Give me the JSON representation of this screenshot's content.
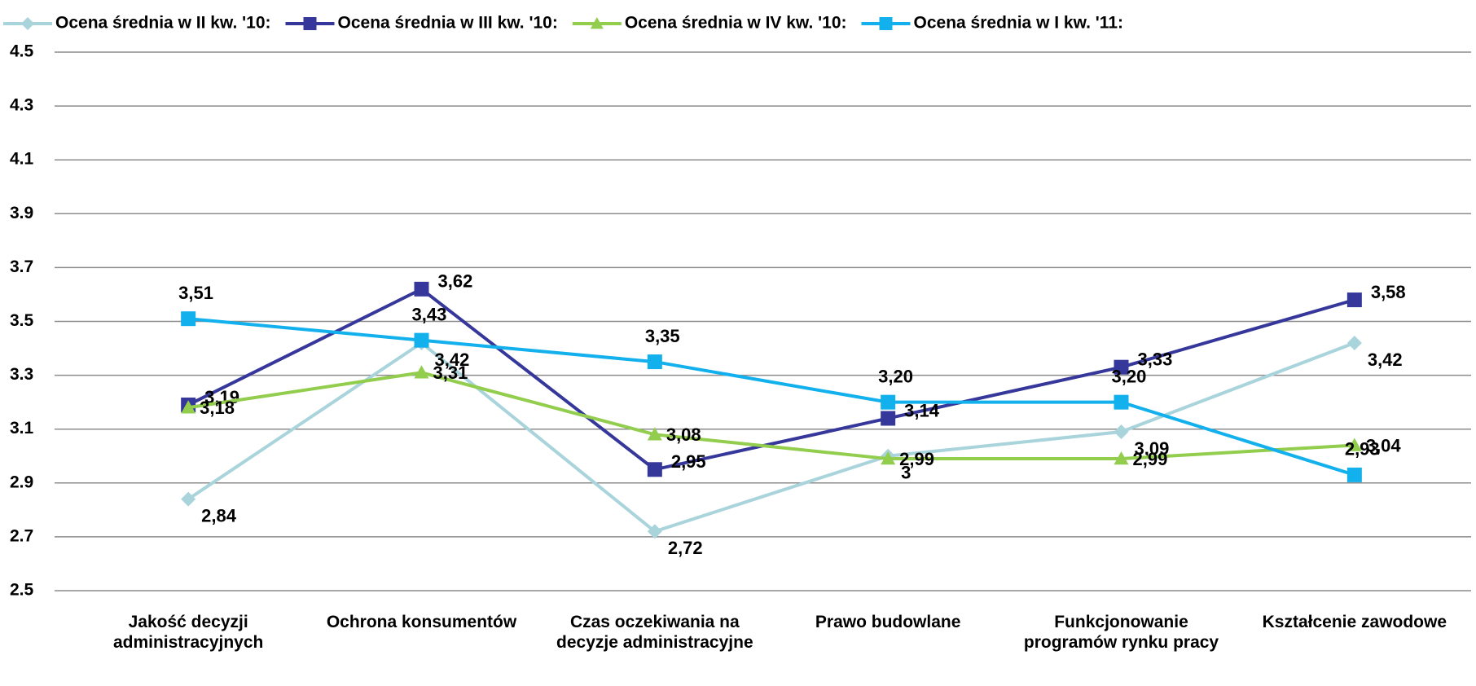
{
  "chart_data": {
    "type": "line",
    "categories": [
      "Jakość decyzji administracyjnych",
      "Ochrona konsumentów",
      "Czas oczekiwania na decyzje administracyjne",
      "Prawo budowlane",
      "Funkcjonowanie programów rynku pracy",
      "Kształcenie zawodowe"
    ],
    "series": [
      {
        "name": "Ocena średnia w II kw. '10:",
        "color": "#a9d4dc",
        "marker": "diamond",
        "values": [
          2.84,
          3.42,
          2.72,
          3,
          3.09,
          3.42
        ],
        "value_labels": [
          "2,84",
          "3,42",
          "2,72",
          "3",
          "3,09",
          "3,42"
        ]
      },
      {
        "name": "Ocena średnia w III kw. '10:",
        "color": "#36379a",
        "marker": "square",
        "values": [
          3.19,
          3.62,
          2.95,
          3.14,
          3.33,
          3.58
        ],
        "value_labels": [
          "3,19",
          "3,62",
          "2,95",
          "3,14",
          "3,33",
          "3,58"
        ]
      },
      {
        "name": "Ocena średnia w IV kw. '10:",
        "color": "#92cd4e",
        "marker": "triangle",
        "values": [
          3.18,
          3.31,
          3.08,
          2.99,
          2.99,
          3.04
        ],
        "value_labels": [
          "3,18",
          "3,31",
          "3,08",
          "2,99",
          "2,99",
          "3,04"
        ]
      },
      {
        "name": "Ocena średnia w I kw. '11:",
        "color": "#12b0ec",
        "marker": "square",
        "values": [
          3.51,
          3.43,
          3.35,
          3.2,
          3.2,
          2.93
        ],
        "value_labels": [
          "3,51",
          "3,43",
          "3,35",
          "3,20",
          "3,20",
          "2,93"
        ]
      }
    ],
    "ylim": [
      2.5,
      4.5
    ],
    "yticks": [
      2.5,
      2.7,
      2.9,
      3.1,
      3.3,
      3.5,
      3.7,
      3.9,
      4.1,
      4.3,
      4.5
    ],
    "grid": true,
    "legend": "top"
  }
}
